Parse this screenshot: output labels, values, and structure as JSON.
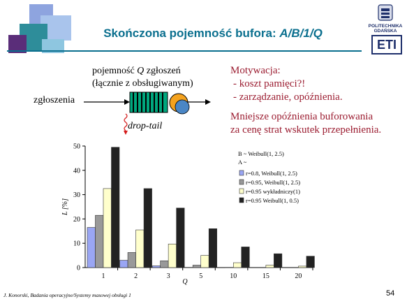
{
  "slide": {
    "title_main": "Skończona pojemność bufora: ",
    "title_model": "A/B/1/Q",
    "logo": {
      "name_line1": "POLITECHNIKA",
      "name_line2": "GDAŃSKA",
      "mark": "ETI"
    },
    "diagram": {
      "capacity_line1_pre": "pojemność ",
      "capacity_q": "Q",
      "capacity_line1_post": " zgłoszeń",
      "capacity_line2": "(łącznie z obsługiwanym)",
      "arrivals": "zgłoszenia",
      "drop": "drop-tail"
    },
    "motivation": {
      "heading": "Motywacja:",
      "items": [
        "- koszt pamięci?!",
        "- zarządzanie, opóźnienia."
      ],
      "conclusion_line1": "Mniejsze opóźnienia buforowania",
      "conclusion_line2": "za cenę strat wskutek przepełnienia."
    },
    "footer": "J. Konorski, Badania operacyjne/Systemy masowej obsługi 1",
    "page_number": "54"
  },
  "chart_data": {
    "type": "bar",
    "categories": [
      "1",
      "2",
      "3",
      "5",
      "10",
      "15",
      "20"
    ],
    "ylim": [
      0,
      50
    ],
    "yticks": [
      0,
      10,
      20,
      30,
      40,
      50
    ],
    "xlabel": "Q",
    "ylabel": "L [%]",
    "grid": false,
    "legend_placement": "top-right",
    "legend_header": [
      "B ~ Weibull(1, 2.5)",
      "A ~"
    ],
    "series": [
      {
        "name": "r=0.8, Weibull(1, 2.5)",
        "color": "#9aa6f4",
        "values": [
          16.5,
          3,
          0.7,
          0.1,
          0,
          0,
          0
        ]
      },
      {
        "name": "r=0.95, Weibull(1, 2.5)",
        "color": "#999999",
        "values": [
          21.5,
          6.2,
          2.8,
          1,
          0.1,
          0,
          0
        ]
      },
      {
        "name": "r=0.95 wykładniczy(1)",
        "color": "#ffffcc",
        "values": [
          32.5,
          15.5,
          9.7,
          5,
          2,
          1,
          0.6
        ]
      },
      {
        "name": "r=0.95 Weibull(1, 0.5)",
        "color": "#222222",
        "values": [
          49.5,
          32.5,
          24.5,
          16,
          8.5,
          5.7,
          4.7
        ]
      }
    ]
  }
}
